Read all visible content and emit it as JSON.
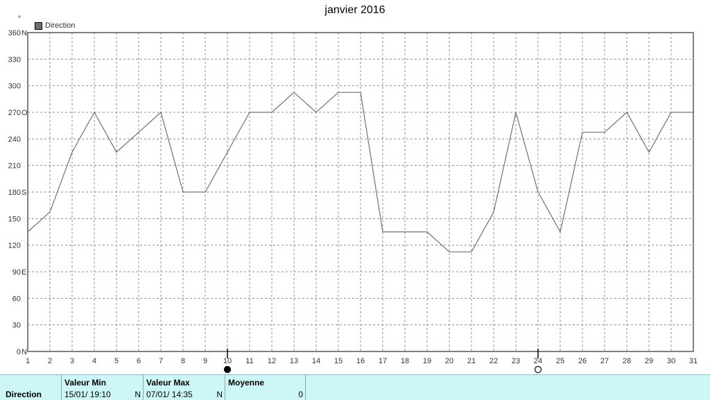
{
  "chart_data": {
    "type": "line",
    "title": "janvier 2016",
    "unit_label": "°",
    "legend": [
      {
        "name": "Direction",
        "color": "#707070"
      }
    ],
    "x": [
      1,
      2,
      3,
      4,
      5,
      6,
      7,
      8,
      9,
      10,
      11,
      12,
      13,
      14,
      15,
      16,
      17,
      18,
      19,
      20,
      21,
      22,
      23,
      24,
      25,
      26,
      27,
      28,
      29,
      30,
      31
    ],
    "xlim": [
      1,
      31
    ],
    "ylim": [
      0,
      360
    ],
    "yticks": [
      {
        "value": 0,
        "label": "0",
        "dir": "N"
      },
      {
        "value": 30,
        "label": "30",
        "dir": ""
      },
      {
        "value": 60,
        "label": "60",
        "dir": ""
      },
      {
        "value": 90,
        "label": "90",
        "dir": "E"
      },
      {
        "value": 120,
        "label": "120",
        "dir": ""
      },
      {
        "value": 150,
        "label": "150",
        "dir": ""
      },
      {
        "value": 180,
        "label": "180",
        "dir": "S"
      },
      {
        "value": 210,
        "label": "210",
        "dir": ""
      },
      {
        "value": 240,
        "label": "240",
        "dir": ""
      },
      {
        "value": 270,
        "label": "270",
        "dir": "O"
      },
      {
        "value": 300,
        "label": "300",
        "dir": ""
      },
      {
        "value": 330,
        "label": "330",
        "dir": ""
      },
      {
        "value": 360,
        "label": "360",
        "dir": "N"
      }
    ],
    "grid": true,
    "series": [
      {
        "name": "Direction",
        "color": "#707070",
        "points": [
          [
            1,
            135
          ],
          [
            2,
            157.5
          ],
          [
            3,
            225
          ],
          [
            4,
            270
          ],
          [
            5,
            225
          ],
          [
            6,
            247.5
          ],
          [
            7,
            270
          ],
          [
            8,
            180
          ],
          [
            9,
            180
          ],
          [
            10,
            225
          ],
          [
            11,
            270
          ],
          [
            12,
            270
          ],
          [
            13,
            292.5
          ],
          [
            14,
            270
          ],
          [
            15,
            292.5
          ],
          [
            16,
            292.5
          ],
          [
            17,
            135
          ],
          [
            18,
            135
          ],
          [
            19,
            135
          ],
          [
            20,
            112.5
          ],
          [
            21,
            112.5
          ],
          [
            22,
            157.5
          ],
          [
            23,
            270
          ],
          [
            24,
            180
          ],
          [
            25,
            135
          ],
          [
            26,
            247.5
          ],
          [
            27,
            247.5
          ],
          [
            28,
            270
          ],
          [
            29,
            225
          ],
          [
            30,
            270
          ],
          [
            31,
            270
          ]
        ]
      }
    ],
    "moon_phases": [
      {
        "day": 10,
        "phase": "full"
      },
      {
        "day": 24,
        "phase": "new"
      }
    ]
  },
  "footer": {
    "row_label": "Direction",
    "min_header": "Valeur Min",
    "min_value": "15/01/  19:10",
    "min_dir": "N",
    "max_header": "Valeur Max",
    "max_value": "07/01/  14:35",
    "max_dir": "N",
    "avg_header": "Moyenne",
    "avg_value": "0"
  }
}
